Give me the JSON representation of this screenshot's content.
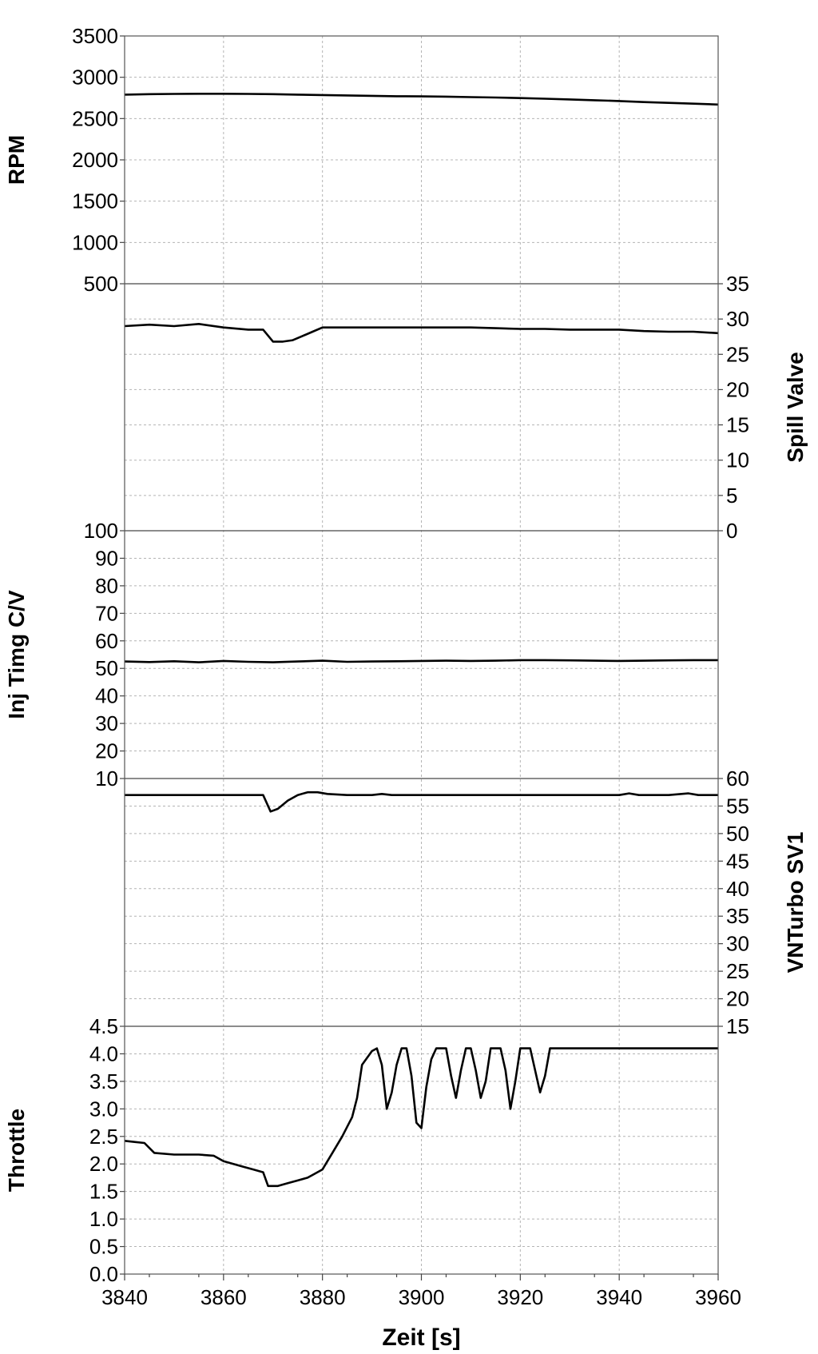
{
  "chart_data": [
    {
      "type": "line",
      "ylabel": "RPM",
      "axis_side": "left",
      "ylim": [
        500,
        3500
      ],
      "yticks": [
        500,
        1000,
        1500,
        2000,
        2500,
        3000,
        3500
      ],
      "yticks_text": [
        "500",
        "1000",
        "1500",
        "2000",
        "2500",
        "3000",
        "3500"
      ],
      "x": [
        3840,
        3845,
        3850,
        3855,
        3860,
        3865,
        3870,
        3875,
        3880,
        3885,
        3890,
        3895,
        3900,
        3905,
        3910,
        3915,
        3920,
        3925,
        3930,
        3935,
        3940,
        3945,
        3950,
        3955,
        3960
      ],
      "y": [
        2790,
        2795,
        2798,
        2800,
        2800,
        2798,
        2795,
        2790,
        2785,
        2780,
        2775,
        2770,
        2768,
        2765,
        2760,
        2755,
        2748,
        2740,
        2732,
        2722,
        2712,
        2700,
        2690,
        2680,
        2670
      ]
    },
    {
      "type": "line",
      "ylabel": "Spill Valve",
      "axis_side": "right",
      "ylim": [
        0,
        35
      ],
      "yticks": [
        0,
        5,
        10,
        15,
        20,
        25,
        30,
        35
      ],
      "yticks_text": [
        "0",
        "5",
        "10",
        "15",
        "20",
        "25",
        "30",
        "35"
      ],
      "x": [
        3840,
        3845,
        3850,
        3855,
        3860,
        3865,
        3868,
        3870,
        3872,
        3874,
        3876,
        3878,
        3880,
        3885,
        3890,
        3895,
        3900,
        3905,
        3910,
        3915,
        3920,
        3925,
        3930,
        3935,
        3940,
        3945,
        3950,
        3955,
        3960
      ],
      "y": [
        29.0,
        29.2,
        29.0,
        29.3,
        28.8,
        28.5,
        28.5,
        26.8,
        26.8,
        27.0,
        27.6,
        28.2,
        28.8,
        28.8,
        28.8,
        28.8,
        28.8,
        28.8,
        28.8,
        28.7,
        28.6,
        28.6,
        28.5,
        28.5,
        28.5,
        28.3,
        28.2,
        28.2,
        28.0
      ]
    },
    {
      "type": "line",
      "ylabel": "Inj Timg C/V",
      "axis_side": "left",
      "ylim": [
        10,
        100
      ],
      "yticks": [
        10,
        20,
        30,
        40,
        50,
        60,
        70,
        80,
        90,
        100
      ],
      "yticks_text": [
        "10",
        "20",
        "30",
        "40",
        "50",
        "60",
        "70",
        "80",
        "90",
        "100"
      ],
      "x": [
        3840,
        3845,
        3850,
        3855,
        3860,
        3865,
        3870,
        3875,
        3880,
        3885,
        3890,
        3895,
        3900,
        3905,
        3910,
        3915,
        3920,
        3925,
        3930,
        3935,
        3940,
        3945,
        3950,
        3955,
        3960
      ],
      "y": [
        52.5,
        52.3,
        52.6,
        52.2,
        52.7,
        52.4,
        52.2,
        52.5,
        52.8,
        52.4,
        52.5,
        52.6,
        52.7,
        52.8,
        52.7,
        52.8,
        53.0,
        53.0,
        52.9,
        52.8,
        52.7,
        52.8,
        52.9,
        53.0,
        53.0
      ]
    },
    {
      "type": "line",
      "ylabel": "VNTurbo SV1",
      "axis_side": "right",
      "ylim": [
        15,
        60
      ],
      "yticks": [
        15,
        20,
        25,
        30,
        35,
        40,
        45,
        50,
        55,
        60
      ],
      "yticks_text": [
        "15",
        "20",
        "25",
        "30",
        "35",
        "40",
        "45",
        "50",
        "55",
        "60"
      ],
      "x": [
        3840,
        3845,
        3850,
        3855,
        3860,
        3865,
        3868,
        3869.5,
        3871,
        3873,
        3875,
        3877,
        3879,
        3881,
        3885,
        3890,
        3892,
        3894,
        3900,
        3910,
        3920,
        3930,
        3940,
        3942,
        3944,
        3950,
        3954,
        3956,
        3960
      ],
      "y": [
        57.0,
        57.0,
        57.0,
        57.0,
        57.0,
        57.0,
        57.0,
        54.0,
        54.5,
        56.0,
        57.0,
        57.5,
        57.5,
        57.2,
        57.0,
        57.0,
        57.2,
        57.0,
        57.0,
        57.0,
        57.0,
        57.0,
        57.0,
        57.3,
        57.0,
        57.0,
        57.3,
        57.0,
        57.0
      ]
    },
    {
      "type": "line",
      "ylabel": "Throttle",
      "axis_side": "left",
      "ylim": [
        0.0,
        4.5
      ],
      "yticks": [
        0.0,
        0.5,
        1.0,
        1.5,
        2.0,
        2.5,
        3.0,
        3.5,
        4.0,
        4.5
      ],
      "yticks_text": [
        "0.0",
        "0.5",
        "1.0",
        "1.5",
        "2.0",
        "2.5",
        "3.0",
        "3.5",
        "4.0",
        "4.5"
      ],
      "xlabel": "Zeit [s]",
      "xlim": [
        3840,
        3960
      ],
      "xticks": [
        3840,
        3860,
        3880,
        3900,
        3920,
        3940,
        3960
      ],
      "xticks_text": [
        "3840",
        "3860",
        "3880",
        "3900",
        "3920",
        "3940",
        "3960"
      ],
      "x": [
        3840,
        3842,
        3844,
        3846,
        3850,
        3855,
        3858,
        3860,
        3862,
        3864,
        3866,
        3868,
        3869,
        3871,
        3873,
        3875,
        3877,
        3878,
        3880,
        3882,
        3884,
        3886,
        3887,
        3888,
        3890,
        3891,
        3892,
        3893,
        3894,
        3895,
        3896,
        3897,
        3898,
        3899,
        3900,
        3901,
        3902,
        3903,
        3905,
        3906,
        3907,
        3908,
        3909,
        3910,
        3911,
        3912,
        3913,
        3914,
        3916,
        3917,
        3918,
        3919,
        3920,
        3922,
        3924,
        3925,
        3926,
        3930,
        3935,
        3940,
        3950,
        3960
      ],
      "y": [
        2.42,
        2.4,
        2.38,
        2.2,
        2.17,
        2.17,
        2.15,
        2.05,
        2.0,
        1.95,
        1.9,
        1.85,
        1.6,
        1.6,
        1.65,
        1.7,
        1.75,
        1.8,
        1.9,
        2.2,
        2.5,
        2.85,
        3.2,
        3.8,
        4.05,
        4.1,
        3.8,
        3.0,
        3.3,
        3.8,
        4.1,
        4.1,
        3.6,
        2.75,
        2.65,
        3.4,
        3.9,
        4.1,
        4.1,
        3.6,
        3.2,
        3.7,
        4.1,
        4.1,
        3.7,
        3.2,
        3.5,
        4.1,
        4.1,
        3.7,
        3.0,
        3.5,
        4.1,
        4.1,
        3.3,
        3.6,
        4.1,
        4.1,
        4.1,
        4.1,
        4.1,
        4.1
      ]
    }
  ]
}
